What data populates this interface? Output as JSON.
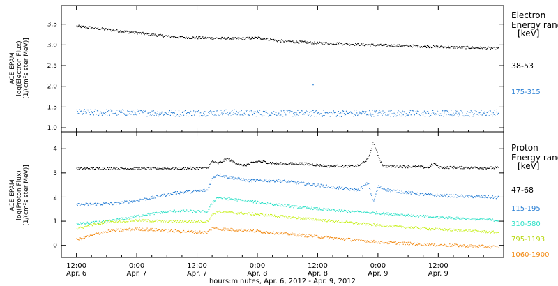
{
  "chart_data": [
    {
      "type": "scatter",
      "panel": "electron",
      "ylabel": [
        "ACE EPAM",
        "log(Electron Flux)",
        "[1/(cm²s ster MeV)]"
      ],
      "ylim": [
        0.9,
        3.95
      ],
      "yticks": [
        "1.0",
        "1.5",
        "2.0",
        "2.5",
        "3.0",
        "3.5"
      ],
      "legend_title": [
        "Electron",
        "Energy ranges",
        "[keV]"
      ],
      "series": [
        {
          "name": "38-53",
          "color": "#000000",
          "points": [
            [
              0,
              3.46
            ],
            [
              4,
              3.41
            ],
            [
              8,
              3.35
            ],
            [
              12,
              3.3
            ],
            [
              16,
              3.24
            ],
            [
              20,
              3.2
            ],
            [
              24,
              3.18
            ],
            [
              28,
              3.17
            ],
            [
              32,
              3.16
            ],
            [
              36,
              3.18
            ],
            [
              40,
              3.11
            ],
            [
              44,
              3.08
            ],
            [
              48,
              3.05
            ],
            [
              52,
              3.04
            ],
            [
              56,
              3.02
            ],
            [
              60,
              3.0
            ],
            [
              64,
              2.99
            ],
            [
              68,
              2.98
            ],
            [
              72,
              2.96
            ],
            [
              76,
              2.95
            ],
            [
              80,
              2.94
            ],
            [
              84,
              2.92
            ]
          ],
          "noise": 0.03
        },
        {
          "name": "175-315",
          "color": "#2a7fd4",
          "points": [
            [
              0,
              1.38
            ],
            [
              10,
              1.37
            ],
            [
              20,
              1.36
            ],
            [
              30,
              1.37
            ],
            [
              40,
              1.36
            ],
            [
              50,
              1.35
            ],
            [
              60,
              1.36
            ],
            [
              70,
              1.35
            ],
            [
              84,
              1.37
            ]
          ],
          "noise": 0.08
        }
      ],
      "outliers": [
        [
          47,
          2.05,
          "#2a7fd4"
        ]
      ]
    },
    {
      "type": "scatter",
      "panel": "proton",
      "ylabel": [
        "ACE EPAM",
        "log(Proton Flux)",
        "[1/(cm²s ster MeV)]"
      ],
      "ylim": [
        -0.5,
        4.7
      ],
      "yticks": [
        "0",
        "1",
        "2",
        "3",
        "4"
      ],
      "legend_title": [
        "Proton",
        "Energy ranges",
        "[keV]"
      ],
      "series": [
        {
          "name": "47-68",
          "color": "#000000",
          "points": [
            [
              0,
              3.2
            ],
            [
              10,
              3.2
            ],
            [
              20,
              3.2
            ],
            [
              26,
              3.22
            ],
            [
              27,
              3.5
            ],
            [
              28,
              3.4
            ],
            [
              30,
              3.6
            ],
            [
              33,
              3.3
            ],
            [
              36,
              3.5
            ],
            [
              40,
              3.4
            ],
            [
              45,
              3.4
            ],
            [
              50,
              3.3
            ],
            [
              56,
              3.3
            ],
            [
              58,
              3.6
            ],
            [
              59,
              4.3
            ],
            [
              60,
              3.7
            ],
            [
              61,
              3.3
            ],
            [
              70,
              3.25
            ],
            [
              71,
              3.4
            ],
            [
              72,
              3.25
            ],
            [
              84,
              3.22
            ]
          ],
          "noise": 0.05
        },
        {
          "name": "115-195",
          "color": "#2a7fd4",
          "points": [
            [
              0,
              1.7
            ],
            [
              8,
              1.75
            ],
            [
              14,
              1.95
            ],
            [
              20,
              2.2
            ],
            [
              26,
              2.3
            ],
            [
              27,
              2.8
            ],
            [
              28,
              2.95
            ],
            [
              30,
              2.85
            ],
            [
              34,
              2.7
            ],
            [
              40,
              2.7
            ],
            [
              46,
              2.55
            ],
            [
              52,
              2.4
            ],
            [
              56,
              2.3
            ],
            [
              58,
              2.6
            ],
            [
              59,
              1.8
            ],
            [
              60,
              2.45
            ],
            [
              62,
              2.3
            ],
            [
              70,
              2.1
            ],
            [
              84,
              2.0
            ]
          ],
          "noise": 0.06
        },
        {
          "name": "310-580",
          "color": "#2ae0c6",
          "points": [
            [
              0,
              0.9
            ],
            [
              6,
              1.0
            ],
            [
              14,
              1.3
            ],
            [
              20,
              1.45
            ],
            [
              26,
              1.4
            ],
            [
              27,
              1.8
            ],
            [
              28,
              2.0
            ],
            [
              30,
              1.95
            ],
            [
              36,
              1.8
            ],
            [
              44,
              1.6
            ],
            [
              52,
              1.45
            ],
            [
              60,
              1.35
            ],
            [
              70,
              1.2
            ],
            [
              84,
              1.05
            ]
          ],
          "noise": 0.05
        },
        {
          "name": "795-1193",
          "color": "#c8f01e",
          "points": [
            [
              0,
              0.7
            ],
            [
              6,
              1.0
            ],
            [
              12,
              1.05
            ],
            [
              20,
              1.0
            ],
            [
              26,
              1.0
            ],
            [
              27,
              1.3
            ],
            [
              28,
              1.4
            ],
            [
              36,
              1.3
            ],
            [
              44,
              1.15
            ],
            [
              52,
              1.0
            ],
            [
              60,
              0.85
            ],
            [
              70,
              0.7
            ],
            [
              84,
              0.55
            ]
          ],
          "noise": 0.05
        },
        {
          "name": "1060-1900",
          "color": "#f28a14",
          "points": [
            [
              0,
              0.25
            ],
            [
              6,
              0.6
            ],
            [
              12,
              0.7
            ],
            [
              20,
              0.6
            ],
            [
              26,
              0.55
            ],
            [
              27,
              0.75
            ],
            [
              28,
              0.7
            ],
            [
              36,
              0.6
            ],
            [
              44,
              0.45
            ],
            [
              52,
              0.3
            ],
            [
              60,
              0.15
            ],
            [
              70,
              0.05
            ],
            [
              84,
              -0.05
            ]
          ],
          "noise": 0.06
        }
      ]
    }
  ],
  "xaxis": {
    "ticks": [
      {
        "time": "12:00",
        "date": "Apr. 6"
      },
      {
        "time": "0:00",
        "date": "Apr. 7"
      },
      {
        "time": "12:00",
        "date": "Apr. 7"
      },
      {
        "time": "0:00",
        "date": "Apr. 8"
      },
      {
        "time": "12:00",
        "date": "Apr. 8"
      },
      {
        "time": "0:00",
        "date": "Apr. 9"
      },
      {
        "time": "12:00",
        "date": "Apr. 9"
      }
    ],
    "label": "hours:minutes, Apr.  6, 2012 - Apr.  9, 2012"
  }
}
